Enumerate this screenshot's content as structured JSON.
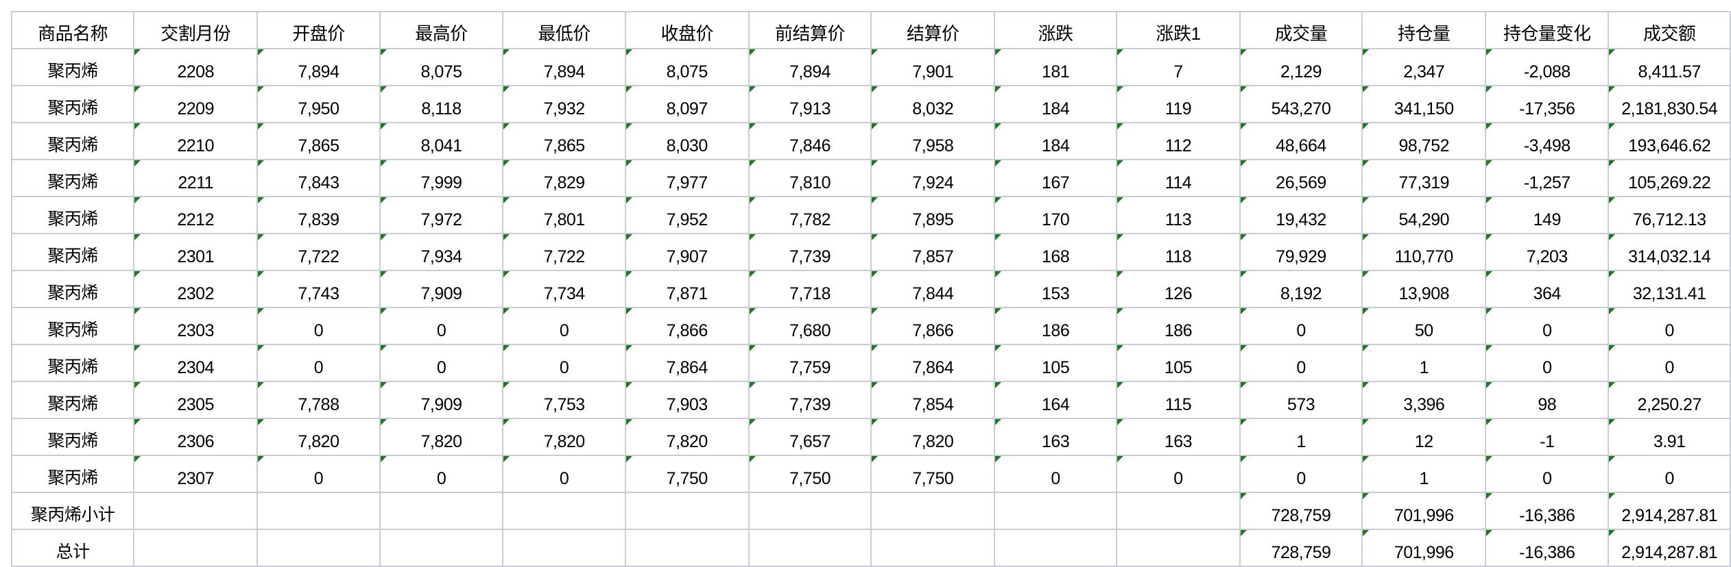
{
  "headers": [
    "商品名称",
    "交割月份",
    "开盘价",
    "最高价",
    "最低价",
    "收盘价",
    "前结算价",
    "结算价",
    "涨跌",
    "涨跌1",
    "成交量",
    "持仓量",
    "持仓量变化",
    "成交额"
  ],
  "rows": [
    [
      "聚丙烯",
      "2208",
      "7,894",
      "8,075",
      "7,894",
      "8,075",
      "7,894",
      "7,901",
      "181",
      "7",
      "2,129",
      "2,347",
      "-2,088",
      "8,411.57"
    ],
    [
      "聚丙烯",
      "2209",
      "7,950",
      "8,118",
      "7,932",
      "8,097",
      "7,913",
      "8,032",
      "184",
      "119",
      "543,270",
      "341,150",
      "-17,356",
      "2,181,830.54"
    ],
    [
      "聚丙烯",
      "2210",
      "7,865",
      "8,041",
      "7,865",
      "8,030",
      "7,846",
      "7,958",
      "184",
      "112",
      "48,664",
      "98,752",
      "-3,498",
      "193,646.62"
    ],
    [
      "聚丙烯",
      "2211",
      "7,843",
      "7,999",
      "7,829",
      "7,977",
      "7,810",
      "7,924",
      "167",
      "114",
      "26,569",
      "77,319",
      "-1,257",
      "105,269.22"
    ],
    [
      "聚丙烯",
      "2212",
      "7,839",
      "7,972",
      "7,801",
      "7,952",
      "7,782",
      "7,895",
      "170",
      "113",
      "19,432",
      "54,290",
      "149",
      "76,712.13"
    ],
    [
      "聚丙烯",
      "2301",
      "7,722",
      "7,934",
      "7,722",
      "7,907",
      "7,739",
      "7,857",
      "168",
      "118",
      "79,929",
      "110,770",
      "7,203",
      "314,032.14"
    ],
    [
      "聚丙烯",
      "2302",
      "7,743",
      "7,909",
      "7,734",
      "7,871",
      "7,718",
      "7,844",
      "153",
      "126",
      "8,192",
      "13,908",
      "364",
      "32,131.41"
    ],
    [
      "聚丙烯",
      "2303",
      "0",
      "0",
      "0",
      "7,866",
      "7,680",
      "7,866",
      "186",
      "186",
      "0",
      "50",
      "0",
      "0"
    ],
    [
      "聚丙烯",
      "2304",
      "0",
      "0",
      "0",
      "7,864",
      "7,759",
      "7,864",
      "105",
      "105",
      "0",
      "1",
      "0",
      "0"
    ],
    [
      "聚丙烯",
      "2305",
      "7,788",
      "7,909",
      "7,753",
      "7,903",
      "7,739",
      "7,854",
      "164",
      "115",
      "573",
      "3,396",
      "98",
      "2,250.27"
    ],
    [
      "聚丙烯",
      "2306",
      "7,820",
      "7,820",
      "7,820",
      "7,820",
      "7,657",
      "7,820",
      "163",
      "163",
      "1",
      "12",
      "-1",
      "3.91"
    ],
    [
      "聚丙烯",
      "2307",
      "0",
      "0",
      "0",
      "7,750",
      "7,750",
      "7,750",
      "0",
      "0",
      "0",
      "1",
      "0",
      "0"
    ],
    [
      "聚丙烯小计",
      "",
      "",
      "",
      "",
      "",
      "",
      "",
      "",
      "",
      "728,759",
      "701,996",
      "-16,386",
      "2,914,287.81"
    ],
    [
      "总计",
      "",
      "",
      "",
      "",
      "",
      "",
      "",
      "",
      "",
      "728,759",
      "701,996",
      "-16,386",
      "2,914,287.81"
    ]
  ],
  "colors": {
    "gridline": "#c8ccd6",
    "error_indicator": "#1f7a1f"
  },
  "icons": {
    "cell_indicator": "green-triangle-icon"
  }
}
